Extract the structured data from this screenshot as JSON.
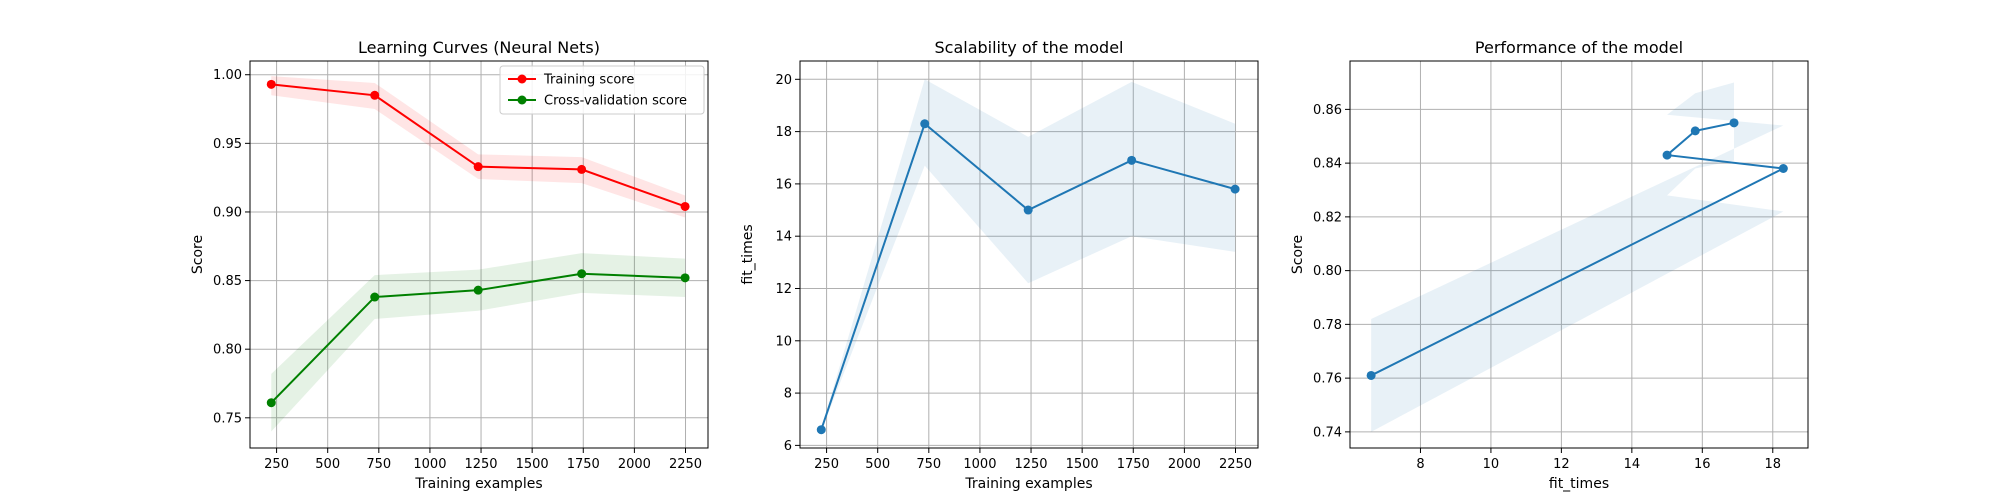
{
  "chart_data": [
    {
      "type": "line",
      "title": "Learning Curves (Neural Nets)",
      "xlabel": "Training examples",
      "ylabel": "Score",
      "xlim": [
        120,
        2360
      ],
      "ylim": [
        0.728,
        1.01
      ],
      "xticks": [
        250,
        500,
        750,
        1000,
        1250,
        1500,
        1750,
        2000,
        2250
      ],
      "yticks": [
        0.75,
        0.8,
        0.85,
        0.9,
        0.95,
        1.0
      ],
      "ytick_labels": [
        "0.75",
        "0.80",
        "0.85",
        "0.90",
        "0.95",
        "1.00"
      ],
      "grid": true,
      "legend": "top-right",
      "x": [
        224,
        730,
        1236,
        1742,
        2248
      ],
      "series": [
        {
          "name": "Training score",
          "color": "#ff0000",
          "values": [
            0.993,
            0.985,
            0.933,
            0.931,
            0.904
          ],
          "band_lower": [
            0.985,
            0.975,
            0.924,
            0.921,
            0.896
          ],
          "band_upper": [
            0.999,
            0.994,
            0.942,
            0.94,
            0.912
          ]
        },
        {
          "name": "Cross-validation score",
          "color": "#008000",
          "values": [
            0.761,
            0.838,
            0.843,
            0.855,
            0.852
          ],
          "band_lower": [
            0.74,
            0.822,
            0.828,
            0.841,
            0.838
          ],
          "band_upper": [
            0.782,
            0.854,
            0.858,
            0.87,
            0.866
          ]
        }
      ]
    },
    {
      "type": "line",
      "title": "Scalability of the model",
      "xlabel": "Training examples",
      "ylabel": "fit_times",
      "xlim": [
        120,
        2360
      ],
      "ylim": [
        5.9,
        20.7
      ],
      "xticks": [
        250,
        500,
        750,
        1000,
        1250,
        1500,
        1750,
        2000,
        2250
      ],
      "yticks": [
        6,
        8,
        10,
        12,
        14,
        16,
        18,
        20
      ],
      "ytick_labels": [
        "6",
        "8",
        "10",
        "12",
        "14",
        "16",
        "18",
        "20"
      ],
      "grid": true,
      "x": [
        224,
        730,
        1236,
        1742,
        2248
      ],
      "series": [
        {
          "color": "#1f77b4",
          "values": [
            6.6,
            18.3,
            15.0,
            16.9,
            15.8
          ],
          "band_lower": [
            6.55,
            16.7,
            12.2,
            14.0,
            13.4
          ],
          "band_upper": [
            6.65,
            20.0,
            17.8,
            19.9,
            18.3
          ]
        }
      ]
    },
    {
      "type": "line",
      "title": "Performance of the model",
      "xlabel": "fit_times",
      "ylabel": "Score",
      "xlim": [
        6.0,
        19.0
      ],
      "ylim": [
        0.734,
        0.878
      ],
      "xticks": [
        8,
        10,
        12,
        14,
        16,
        18
      ],
      "yticks": [
        0.74,
        0.76,
        0.78,
        0.8,
        0.82,
        0.84,
        0.86
      ],
      "ytick_labels": [
        "0.74",
        "0.76",
        "0.78",
        "0.80",
        "0.82",
        "0.84",
        "0.86"
      ],
      "grid": true,
      "x": [
        6.6,
        18.3,
        15.0,
        15.8,
        16.9
      ],
      "series": [
        {
          "color": "#1f77b4",
          "values": [
            0.761,
            0.838,
            0.843,
            0.852,
            0.855
          ],
          "band_lower": [
            0.74,
            0.822,
            0.828,
            0.838,
            0.841
          ],
          "band_upper": [
            0.782,
            0.854,
            0.858,
            0.866,
            0.87
          ]
        }
      ]
    }
  ]
}
